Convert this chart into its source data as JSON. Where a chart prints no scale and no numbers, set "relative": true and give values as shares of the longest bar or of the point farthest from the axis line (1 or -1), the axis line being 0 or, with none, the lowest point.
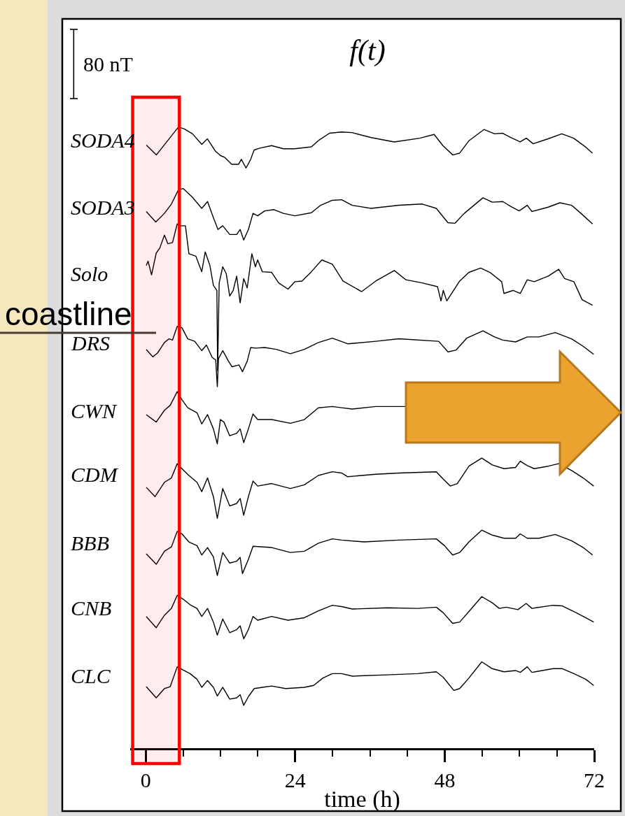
{
  "chart_data": {
    "type": "line",
    "title": "f(t)",
    "xlabel": "time (h)",
    "relative": true,
    "legend": false,
    "line_style": "solid",
    "tick_labels": "x",
    "xlim": [
      -2.5,
      72
    ],
    "xticks": [
      0,
      {
        "value": 6,
        "label": null
      },
      {
        "value": 12,
        "label": null
      },
      {
        "value": 18,
        "label": null
      },
      24,
      {
        "value": 30,
        "label": null
      },
      {
        "value": 36,
        "label": null
      },
      {
        "value": 42,
        "label": null
      },
      48,
      {
        "value": 54,
        "label": null
      },
      {
        "value": 60,
        "label": null
      },
      {
        "value": 66,
        "label": null
      },
      72
    ],
    "bands": [
      {
        "axis": "x",
        "from": -2.1,
        "to": 5.4,
        "color": "#ff0000"
      }
    ],
    "annotations": [
      "80 nT",
      "coastline"
    ],
    "series": [
      {
        "name": "SODA4",
        "color": "#000000",
        "x": [
          0.1,
          1.7,
          5.25,
          6.2,
          7.5,
          9.0,
          9.9,
          11.2,
          12.0,
          12.7,
          13.8,
          14.9,
          15.35,
          16.1,
          16.85,
          17.4,
          18.3,
          20.2,
          22.1,
          23.9,
          26.6,
          27.7,
          29.5,
          31.45,
          33.1,
          36.2,
          39.9,
          44.0,
          46.3,
          47.7,
          49.3,
          50.4,
          51.9,
          54.3,
          56.0,
          57.3,
          58.6,
          60.1,
          61.1,
          62.2,
          64.6,
          66.8,
          68.7,
          70.6,
          71.7
        ],
        "values": [
          0.971,
          0.955,
          1.0,
          0.997,
          0.989,
          0.972,
          0.981,
          0.961,
          0.954,
          0.951,
          0.94,
          0.94,
          0.948,
          0.934,
          0.948,
          0.963,
          0.966,
          0.97,
          0.965,
          0.965,
          0.968,
          0.978,
          0.99,
          0.992,
          0.991,
          0.983,
          0.976,
          0.982,
          0.988,
          0.97,
          0.955,
          0.958,
          0.978,
          0.996,
          0.989,
          0.99,
          0.983,
          0.976,
          0.982,
          0.973,
          0.981,
          0.989,
          0.982,
          0.968,
          0.958
        ]
      },
      {
        "name": "SODA3",
        "color": "#000000",
        "x": [
          0.08,
          1.61,
          3.0,
          4.12,
          5.25,
          5.99,
          7.49,
          8.99,
          9.92,
          10.86,
          11.6,
          12.36,
          13.48,
          14.6,
          15.16,
          15.73,
          16.48,
          17.22,
          17.97,
          19.09,
          20.59,
          22.09,
          23.96,
          26.59,
          28.08,
          29.96,
          31.45,
          33.14,
          36.17,
          40.66,
          44.4,
          46.65,
          48.52,
          49.65,
          51.14,
          54.14,
          55.63,
          57.32,
          58.63,
          59.95,
          61.25,
          62.0,
          64.62,
          66.49,
          68.37,
          69.87,
          71.74
        ],
        "values": [
          0.864,
          0.847,
          0.861,
          0.876,
          0.899,
          0.901,
          0.887,
          0.869,
          0.88,
          0.854,
          0.835,
          0.841,
          0.827,
          0.827,
          0.835,
          0.818,
          0.835,
          0.861,
          0.857,
          0.865,
          0.867,
          0.861,
          0.857,
          0.862,
          0.874,
          0.882,
          0.883,
          0.874,
          0.869,
          0.874,
          0.876,
          0.869,
          0.846,
          0.845,
          0.861,
          0.886,
          0.879,
          0.88,
          0.872,
          0.865,
          0.874,
          0.864,
          0.871,
          0.878,
          0.874,
          0.861,
          0.844
        ]
      },
      {
        "name": "Solo",
        "color": "#000000",
        "x": [
          0.08,
          0.37,
          0.93,
          1.68,
          2.25,
          3.0,
          3.56,
          4.3,
          5.05,
          5.62,
          6.37,
          6.93,
          8.05,
          8.99,
          9.55,
          10.3,
          10.86,
          11.42,
          11.54,
          11.79,
          12.36,
          12.92,
          13.48,
          14.04,
          14.6,
          15.16,
          15.73,
          16.29,
          17.04,
          17.6,
          17.97,
          18.72,
          20.22,
          21.34,
          22.84,
          23.96,
          25.08,
          26.59,
          28.27,
          29.96,
          31.67,
          34.67,
          36.92,
          39.91,
          41.78,
          44.4,
          46.84,
          47.4,
          47.77,
          48.33,
          50.4,
          51.89,
          53.77,
          55.26,
          57.14,
          57.51,
          59.0,
          60.13,
          61.25,
          62.37,
          64.62,
          66.3,
          67.25,
          68.74,
          70.06,
          71.74
        ],
        "values": [
          0.777,
          0.784,
          0.762,
          0.797,
          0.805,
          0.826,
          0.812,
          0.814,
          0.844,
          0.841,
          0.841,
          0.796,
          0.792,
          0.767,
          0.799,
          0.777,
          0.745,
          0.737,
          0.608,
          0.749,
          0.775,
          0.764,
          0.728,
          0.737,
          0.76,
          0.717,
          0.756,
          0.741,
          0.796,
          0.775,
          0.786,
          0.767,
          0.766,
          0.749,
          0.739,
          0.751,
          0.752,
          0.767,
          0.786,
          0.779,
          0.752,
          0.735,
          0.752,
          0.769,
          0.754,
          0.749,
          0.743,
          0.72,
          0.737,
          0.72,
          0.752,
          0.766,
          0.773,
          0.766,
          0.751,
          0.732,
          0.737,
          0.732,
          0.754,
          0.751,
          0.76,
          0.771,
          0.756,
          0.751,
          0.722,
          0.713
        ]
      },
      {
        "name": "DRS",
        "color": "#000000",
        "x": [
          0.08,
          1.12,
          1.88,
          3.0,
          3.74,
          4.3,
          5.05,
          5.81,
          6.74,
          7.86,
          8.99,
          9.74,
          10.67,
          11.23,
          11.49,
          11.68,
          12.36,
          13.29,
          13.85,
          14.97,
          15.53,
          16.29,
          16.85,
          17.6,
          19.09,
          20.97,
          23.22,
          25.46,
          27.71,
          29.96,
          32.43,
          36.92,
          40.66,
          47.03,
          48.52,
          49.84,
          51.52,
          54.14,
          56.01,
          57.32,
          59.38,
          61.25,
          63.13,
          65.74,
          68.37,
          70.23,
          71.92
        ],
        "values": [
          0.642,
          0.63,
          0.636,
          0.653,
          0.659,
          0.657,
          0.679,
          0.677,
          0.659,
          0.655,
          0.64,
          0.649,
          0.629,
          0.625,
          0.582,
          0.627,
          0.64,
          0.623,
          0.614,
          0.617,
          0.606,
          0.623,
          0.645,
          0.644,
          0.645,
          0.642,
          0.635,
          0.642,
          0.653,
          0.66,
          0.651,
          0.655,
          0.659,
          0.655,
          0.638,
          0.641,
          0.66,
          0.672,
          0.662,
          0.657,
          0.654,
          0.662,
          0.662,
          0.669,
          0.659,
          0.647,
          0.634
        ]
      },
      {
        "name": "CWN",
        "color": "#000000",
        "x": [
          0.08,
          1.68,
          3.0,
          3.93,
          5.05,
          5.81,
          6.74,
          8.23,
          8.99,
          9.92,
          10.86,
          11.49,
          11.98,
          12.55,
          13.48,
          14.6,
          15.16,
          15.73,
          16.48,
          17.22,
          17.97,
          20.22,
          23.22,
          25.46,
          27.71,
          29.96,
          31.45,
          33.17,
          36.92,
          38.78,
          41.78
        ],
        "values": [
          0.537,
          0.525,
          0.544,
          0.552,
          0.574,
          0.561,
          0.548,
          0.54,
          0.522,
          0.537,
          0.514,
          0.49,
          0.529,
          0.525,
          0.503,
          0.507,
          0.514,
          0.492,
          0.514,
          0.538,
          0.529,
          0.529,
          0.523,
          0.529,
          0.548,
          0.55,
          0.548,
          0.546,
          0.55,
          0.55,
          0.55
        ]
      },
      {
        "name": "CDM",
        "color": "#000000",
        "x": [
          0.08,
          1.49,
          3.0,
          4.12,
          5.05,
          5.81,
          6.93,
          8.23,
          8.99,
          9.92,
          10.86,
          11.49,
          12.36,
          13.48,
          14.6,
          15.16,
          15.73,
          16.48,
          17.22,
          17.97,
          20.22,
          23.22,
          25.46,
          27.71,
          29.96,
          31.45,
          32.43,
          36.92,
          40.66,
          46.65,
          47.77,
          48.89,
          50.02,
          51.89,
          53.95,
          55.63,
          57.51,
          59.38,
          60.13,
          61.25,
          62.37,
          64.62,
          66.3,
          68.37,
          70.23,
          71.92
        ],
        "values": [
          0.42,
          0.405,
          0.428,
          0.435,
          0.458,
          0.45,
          0.439,
          0.428,
          0.413,
          0.435,
          0.405,
          0.37,
          0.418,
          0.39,
          0.394,
          0.402,
          0.375,
          0.405,
          0.43,
          0.422,
          0.426,
          0.418,
          0.424,
          0.439,
          0.445,
          0.443,
          0.437,
          0.441,
          0.443,
          0.445,
          0.433,
          0.422,
          0.426,
          0.454,
          0.467,
          0.456,
          0.45,
          0.452,
          0.462,
          0.455,
          0.45,
          0.454,
          0.458,
          0.447,
          0.435,
          0.422
        ]
      },
      {
        "name": "BBB",
        "color": "#000000",
        "x": [
          0.08,
          1.68,
          3.0,
          4.12,
          5.05,
          5.81,
          6.93,
          8.23,
          8.99,
          9.92,
          10.86,
          11.49,
          12.36,
          13.48,
          14.6,
          15.16,
          15.53,
          16.48,
          17.22,
          20.22,
          23.22,
          25.46,
          27.71,
          29.96,
          31.45,
          35.04,
          40.66,
          46.65,
          47.96,
          49.27,
          50.4,
          51.89,
          53.95,
          55.63,
          57.51,
          59.38,
          60.13,
          61.25,
          63.13,
          65.74,
          68.37,
          70.23,
          71.74
        ],
        "values": [
          0.313,
          0.296,
          0.317,
          0.324,
          0.349,
          0.345,
          0.332,
          0.326,
          0.311,
          0.323,
          0.308,
          0.278,
          0.315,
          0.298,
          0.301,
          0.307,
          0.281,
          0.304,
          0.325,
          0.323,
          0.315,
          0.317,
          0.33,
          0.337,
          0.335,
          0.332,
          0.335,
          0.337,
          0.326,
          0.311,
          0.315,
          0.332,
          0.351,
          0.343,
          0.338,
          0.338,
          0.345,
          0.338,
          0.338,
          0.344,
          0.334,
          0.323,
          0.311
        ]
      },
      {
        "name": "CNB",
        "color": "#000000",
        "x": [
          0.08,
          1.68,
          3.0,
          4.12,
          5.05,
          5.99,
          7.11,
          8.23,
          8.99,
          9.92,
          10.86,
          11.49,
          12.36,
          13.48,
          14.6,
          15.16,
          15.73,
          16.48,
          17.22,
          17.97,
          20.22,
          22.84,
          25.46,
          27.71,
          29.96,
          31.45,
          33.17,
          38.78,
          43.66,
          46.65,
          47.77,
          49.27,
          50.4,
          51.89,
          53.95,
          55.63,
          56.76,
          57.88,
          59.76,
          61.07,
          62.0,
          65.37,
          66.87,
          68.74,
          70.62,
          71.92
        ],
        "values": [
          0.212,
          0.194,
          0.214,
          0.225,
          0.246,
          0.24,
          0.231,
          0.225,
          0.212,
          0.225,
          0.203,
          0.182,
          0.208,
          0.186,
          0.191,
          0.197,
          0.176,
          0.191,
          0.212,
          0.206,
          0.212,
          0.206,
          0.21,
          0.221,
          0.23,
          0.228,
          0.224,
          0.226,
          0.225,
          0.227,
          0.218,
          0.201,
          0.203,
          0.22,
          0.244,
          0.234,
          0.225,
          0.227,
          0.223,
          0.233,
          0.225,
          0.23,
          0.229,
          0.22,
          0.21,
          0.203
        ]
      },
      {
        "name": "CLC",
        "color": "#000000",
        "x": [
          0.08,
          1.68,
          3.0,
          3.93,
          5.05,
          5.99,
          7.11,
          8.23,
          8.99,
          9.92,
          10.86,
          11.49,
          12.36,
          13.48,
          14.6,
          15.16,
          15.73,
          16.48,
          17.41,
          18.72,
          20.22,
          22.46,
          25.46,
          26.96,
          28.45,
          29.96,
          31.45,
          33.17,
          38.78,
          43.66,
          46.65,
          47.77,
          49.46,
          50.4,
          51.89,
          53.95,
          55.63,
          57.51,
          59.38,
          60.13,
          61.25,
          62.0,
          65.37,
          66.87,
          68.74,
          70.62,
          71.92
        ],
        "values": [
          0.099,
          0.081,
          0.096,
          0.099,
          0.131,
          0.126,
          0.12,
          0.111,
          0.098,
          0.109,
          0.098,
          0.084,
          0.098,
          0.079,
          0.081,
          0.086,
          0.069,
          0.083,
          0.096,
          0.098,
          0.1,
          0.096,
          0.098,
          0.101,
          0.113,
          0.12,
          0.12,
          0.116,
          0.118,
          0.12,
          0.123,
          0.114,
          0.093,
          0.096,
          0.113,
          0.139,
          0.128,
          0.123,
          0.125,
          0.122,
          0.131,
          0.122,
          0.128,
          0.128,
          0.12,
          0.111,
          0.101
        ]
      }
    ]
  }
}
